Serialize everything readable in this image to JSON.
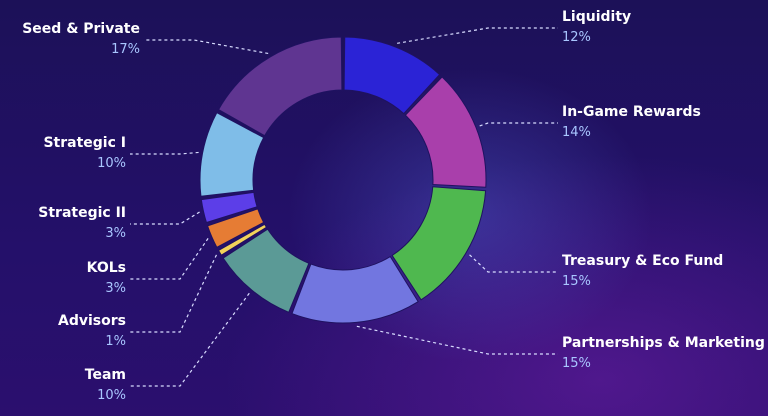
{
  "chart_data": {
    "type": "pie",
    "title": "",
    "categories": [
      "Liquidity",
      "In-Game Rewards",
      "Treasury & Eco Fund",
      "Partnerships & Marketing",
      "Team",
      "Advisors",
      "KOLs",
      "Strategic II",
      "Strategic I",
      "Seed & Private"
    ],
    "values": [
      12,
      14,
      15,
      15,
      10,
      1,
      3,
      3,
      10,
      17
    ],
    "labels": [
      "12%",
      "14%",
      "15%",
      "15%",
      "10%",
      "1%",
      "3%",
      "3%",
      "10%",
      "17%"
    ],
    "colors": [
      "#2b23d6",
      "#a93fab",
      "#4fb84f",
      "#7276e0",
      "#5b9a96",
      "#f2d25a",
      "#e67c34",
      "#5c3ee8",
      "#7fbde8",
      "#5f3591"
    ],
    "legend": "none",
    "style": "donut"
  }
}
